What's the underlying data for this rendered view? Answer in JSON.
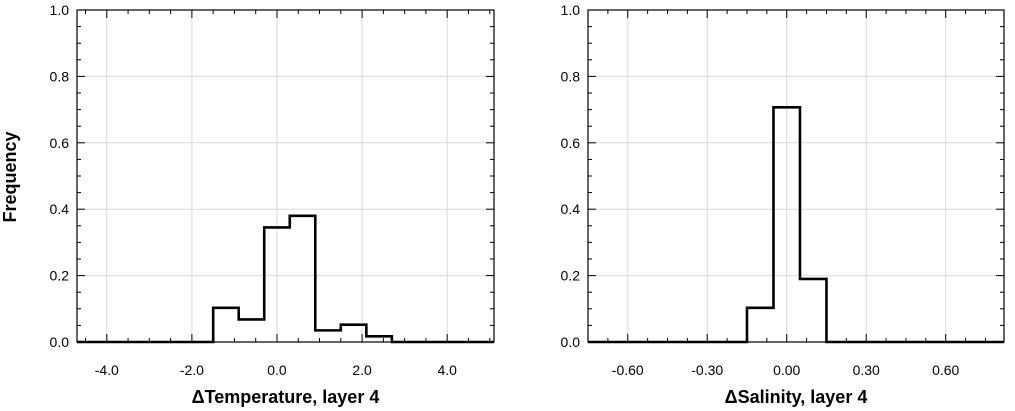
{
  "chart_data": [
    {
      "type": "histogram",
      "xlabel": "ΔTemperature, layer 4",
      "ylabel": "Frequency",
      "xlim": [
        -4.7,
        5.1
      ],
      "ylim": [
        0,
        1.0
      ],
      "xticks": [
        -4.0,
        -2.0,
        0.0,
        2.0,
        4.0
      ],
      "xtick_labels": [
        "-4.0",
        "-2.0",
        "0.0",
        "2.0",
        "4.0"
      ],
      "yticks": [
        0.0,
        0.2,
        0.4,
        0.6,
        0.8,
        1.0
      ],
      "ytick_labels": [
        "0.0",
        "0.2",
        "0.4",
        "0.6",
        "0.8",
        "1.0"
      ],
      "grid": true,
      "bin_edges": [
        -4.7,
        -1.5,
        -0.9,
        -0.3,
        0.3,
        0.9,
        1.5,
        2.1,
        2.7,
        5.1
      ],
      "values": [
        0.0,
        0.103,
        0.068,
        0.345,
        0.38,
        0.035,
        0.052,
        0.017,
        0.0
      ]
    },
    {
      "type": "histogram",
      "xlabel": "ΔSalinity, layer 4",
      "ylabel": "",
      "xlim": [
        -0.75,
        0.82
      ],
      "ylim": [
        0,
        1.0
      ],
      "xticks": [
        -0.6,
        -0.3,
        0.0,
        0.3,
        0.6
      ],
      "xtick_labels": [
        "-0.60",
        "-0.30",
        "0.00",
        "0.30",
        "0.60"
      ],
      "yticks": [
        0.0,
        0.2,
        0.4,
        0.6,
        0.8,
        1.0
      ],
      "ytick_labels": [
        "0.0",
        "0.2",
        "0.4",
        "0.6",
        "0.8",
        "1.0"
      ],
      "grid": true,
      "bin_edges": [
        -0.75,
        -0.15,
        -0.05,
        0.05,
        0.15,
        0.82
      ],
      "values": [
        0.0,
        0.103,
        0.707,
        0.19,
        0.0
      ]
    }
  ]
}
